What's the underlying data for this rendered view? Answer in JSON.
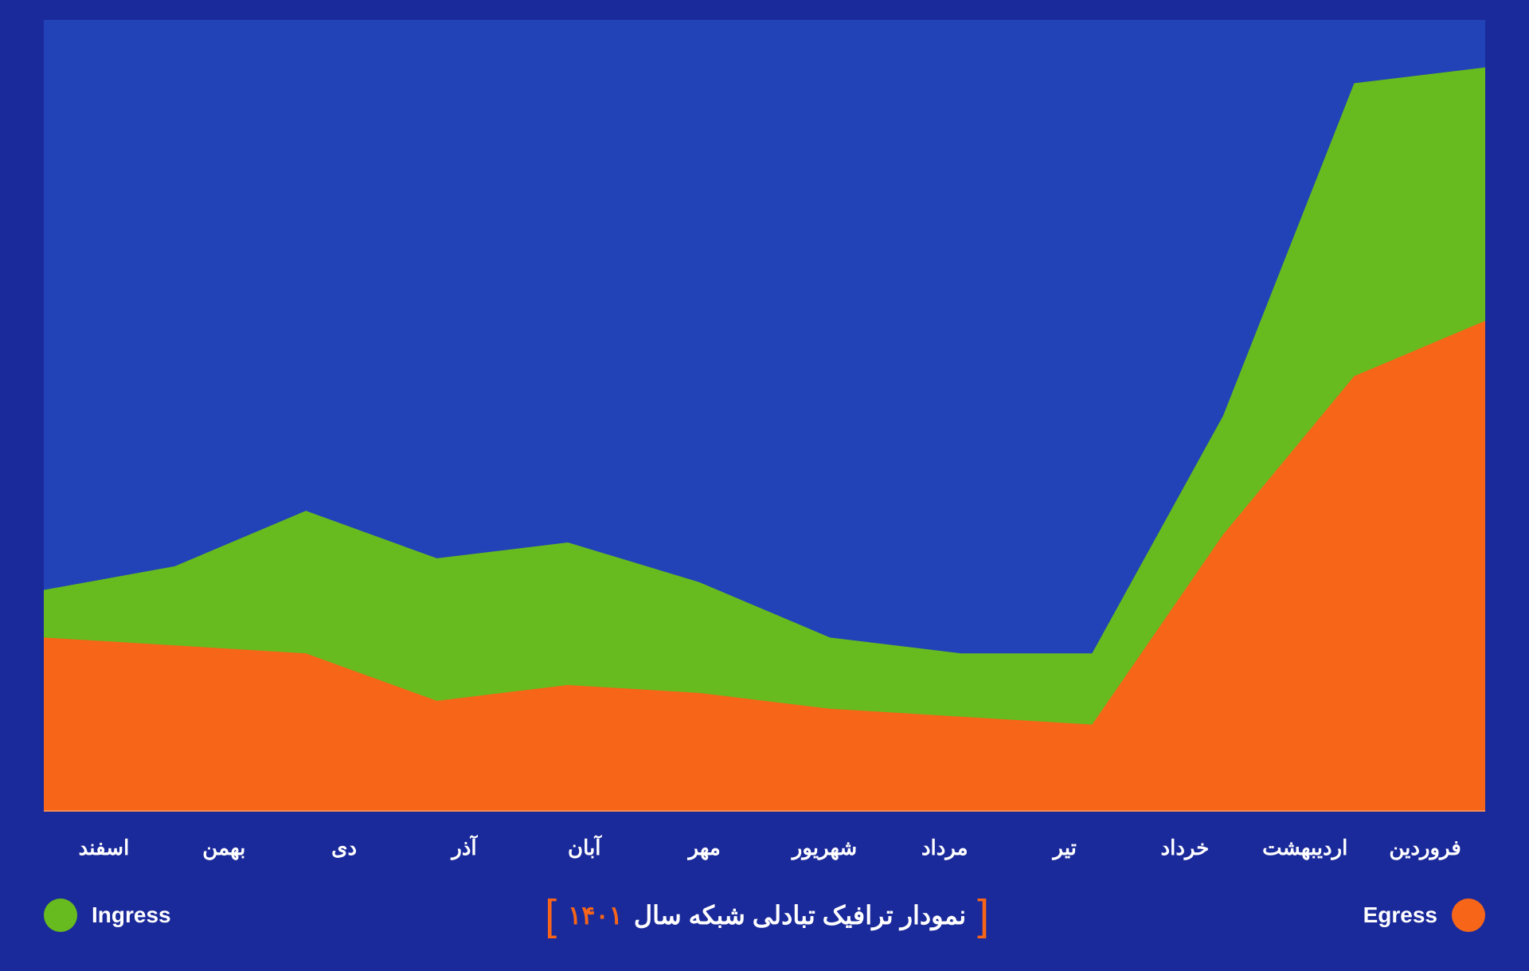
{
  "chart": {
    "type": "area-stacked",
    "background_color": "#1b2a9a",
    "plot_background_color": "#2242b7",
    "baseline_color": "rgba(255,255,255,0.25)",
    "ylim": [
      0,
      100
    ],
    "categories": [
      "فروردین",
      "اردیبهشت",
      "خرداد",
      "تیر",
      "مرداد",
      "شهریور",
      "مهر",
      "آبان",
      "آذر",
      "دی",
      "بهمن",
      "اسفند"
    ],
    "x_tick_color": "#ffffff",
    "x_tick_fontsize": 26,
    "x_tick_fontweight": 700,
    "series": [
      {
        "name": "Egress",
        "color": "#f76518",
        "values": [
          22,
          21,
          20,
          14,
          16,
          15,
          13,
          12,
          11,
          35,
          55,
          62
        ]
      },
      {
        "name": "Ingress",
        "color": "#67bb1e",
        "values": [
          28,
          31,
          38,
          32,
          34,
          29,
          22,
          20,
          20,
          50,
          92,
          94
        ]
      }
    ]
  },
  "legend": {
    "left": {
      "label": "Ingress",
      "color": "#67bb1e"
    },
    "right": {
      "label": "Egress",
      "color": "#f76518"
    },
    "label_color": "#ffffff",
    "label_fontsize": 28,
    "swatch_radius": 21
  },
  "title": {
    "main": "نمودار ترافیک تبادلی شبکه سال",
    "year": "۱۴۰۱",
    "main_color": "#ffffff",
    "year_color": "#f76518",
    "bracket_color": "#f76518",
    "fontsize": 32
  }
}
